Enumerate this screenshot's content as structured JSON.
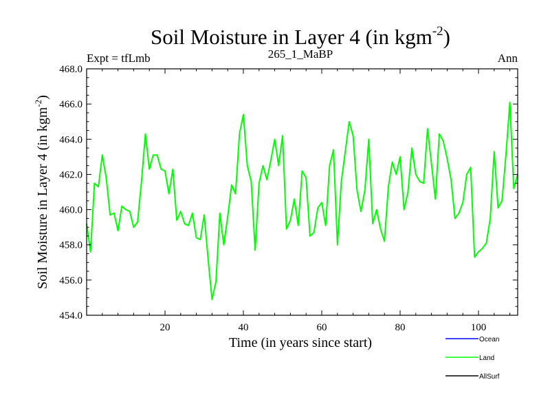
{
  "chart_data": {
    "type": "line",
    "title": "Soil Moisture in Layer 4 (in kgm",
    "title_sup": "-2",
    "title_end": ")",
    "subtitle_left": "Expt = tfLmb",
    "subtitle_center": "265_1_MaBP",
    "subtitle_right": "Ann",
    "xlabel": "Time (in years since start)",
    "ylabel": "Soil Moisture in Layer 4 (in kgm",
    "ylabel_sup": "-2",
    "ylabel_end": ")",
    "xlim": [
      0,
      110
    ],
    "ylim": [
      454.0,
      468.0
    ],
    "xticks": [
      20,
      40,
      60,
      80,
      100
    ],
    "xtick_labels": [
      "20",
      "40",
      "60",
      "80",
      "100"
    ],
    "yticks": [
      454.0,
      456.0,
      458.0,
      460.0,
      462.0,
      464.0,
      466.0,
      468.0
    ],
    "ytick_labels": [
      "454.0",
      "456.0",
      "458.0",
      "460.0",
      "462.0",
      "464.0",
      "466.0",
      "468.0"
    ],
    "legend": [
      {
        "name": "Ocean",
        "color": "#0000ff"
      },
      {
        "name": "Land",
        "color": "#00ff00"
      },
      {
        "name": "AllSurf",
        "color": "#000000"
      }
    ],
    "series": [
      {
        "name": "Land",
        "color": "#00ff00",
        "x": [
          0,
          1,
          2,
          3,
          4,
          5,
          6,
          7,
          8,
          9,
          10,
          11,
          12,
          13,
          14,
          15,
          16,
          17,
          18,
          19,
          20,
          21,
          22,
          23,
          24,
          25,
          26,
          27,
          28,
          29,
          30,
          31,
          32,
          33,
          34,
          35,
          36,
          37,
          38,
          39,
          40,
          41,
          42,
          43,
          44,
          45,
          46,
          47,
          48,
          49,
          50,
          51,
          52,
          53,
          54,
          55,
          56,
          57,
          58,
          59,
          60,
          61,
          62,
          63,
          64,
          65,
          66,
          67,
          68,
          69,
          70,
          71,
          72,
          73,
          74,
          75,
          76,
          77,
          78,
          79,
          80,
          81,
          82,
          83,
          84,
          85,
          86,
          87,
          88,
          89,
          90,
          91,
          92,
          93,
          94,
          95,
          96,
          97,
          98,
          99,
          100,
          101,
          102,
          103,
          104,
          105,
          106,
          107,
          108,
          109,
          110
        ],
        "values": [
          459.2,
          457.6,
          461.5,
          461.3,
          463.1,
          461.8,
          459.7,
          459.8,
          458.8,
          460.2,
          460.0,
          459.9,
          459.0,
          459.3,
          461.6,
          464.3,
          462.3,
          463.1,
          463.1,
          462.3,
          462.2,
          460.9,
          462.3,
          459.4,
          459.9,
          459.2,
          459.1,
          459.8,
          458.4,
          458.3,
          459.7,
          457.2,
          454.9,
          455.9,
          459.8,
          458.0,
          459.6,
          461.4,
          460.9,
          464.3,
          465.4,
          462.5,
          461.6,
          457.7,
          461.5,
          462.5,
          461.7,
          462.8,
          464.0,
          462.5,
          464.2,
          458.9,
          459.4,
          460.6,
          459.1,
          462.2,
          461.8,
          458.5,
          458.7,
          460.1,
          460.4,
          459.1,
          462.5,
          463.4,
          458.0,
          461.6,
          463.3,
          465.0,
          464.2,
          461.1,
          459.9,
          461.1,
          464.0,
          459.2,
          460.0,
          458.9,
          458.2,
          461.3,
          462.7,
          462.0,
          463.0,
          460.0,
          461.0,
          463.5,
          462.0,
          461.6,
          461.5,
          464.6,
          462.6,
          460.6,
          464.3,
          463.9,
          462.9,
          461.7,
          459.5,
          459.8,
          460.4,
          462.0,
          462.4,
          457.3,
          457.6,
          457.8,
          458.1,
          459.5,
          463.3,
          460.1,
          460.5,
          463.1,
          466.1,
          461.2,
          462.0
        ]
      }
    ]
  }
}
